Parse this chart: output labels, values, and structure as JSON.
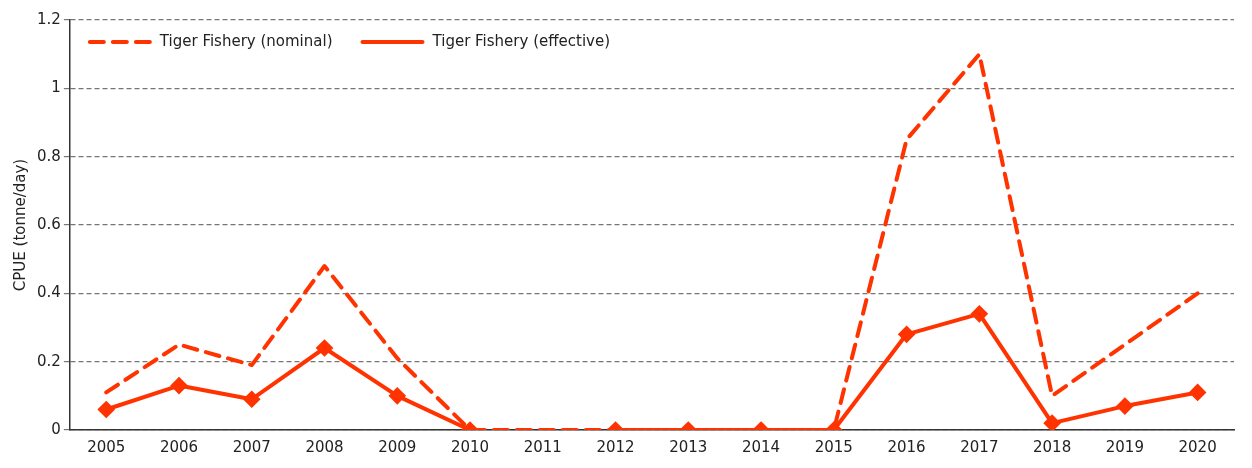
{
  "chart_data": {
    "type": "line",
    "ylabel": "CPUE (tonne/day)",
    "categories": [
      "2005",
      "2006",
      "2007",
      "2008",
      "2009",
      "2010",
      "2011",
      "2012",
      "2013",
      "2014",
      "2015",
      "2016",
      "2017",
      "2018",
      "2019",
      "2020"
    ],
    "series": [
      {
        "name": "Tiger Fishery (nominal)",
        "color": "#ff3300",
        "line_style": "dashed",
        "marker": "none",
        "values": [
          0.11,
          0.25,
          0.19,
          0.48,
          0.21,
          0,
          0,
          0,
          0,
          0,
          0,
          0.85,
          1.1,
          0.1,
          0.25,
          0.4
        ]
      },
      {
        "name": "Tiger Fishery (effective)",
        "color": "#ff3300",
        "line_style": "solid",
        "marker": "diamond",
        "values": [
          0.06,
          0.13,
          0.09,
          0.24,
          0.1,
          0,
          null,
          0,
          0,
          0,
          0,
          0.28,
          0.34,
          0.02,
          0.07,
          0.11
        ]
      }
    ],
    "ylim": [
      0,
      1.2
    ],
    "yticks": [
      0,
      0.2,
      0.4,
      0.6,
      0.8,
      1,
      1.2
    ],
    "grid": "y",
    "legend": "top left"
  }
}
